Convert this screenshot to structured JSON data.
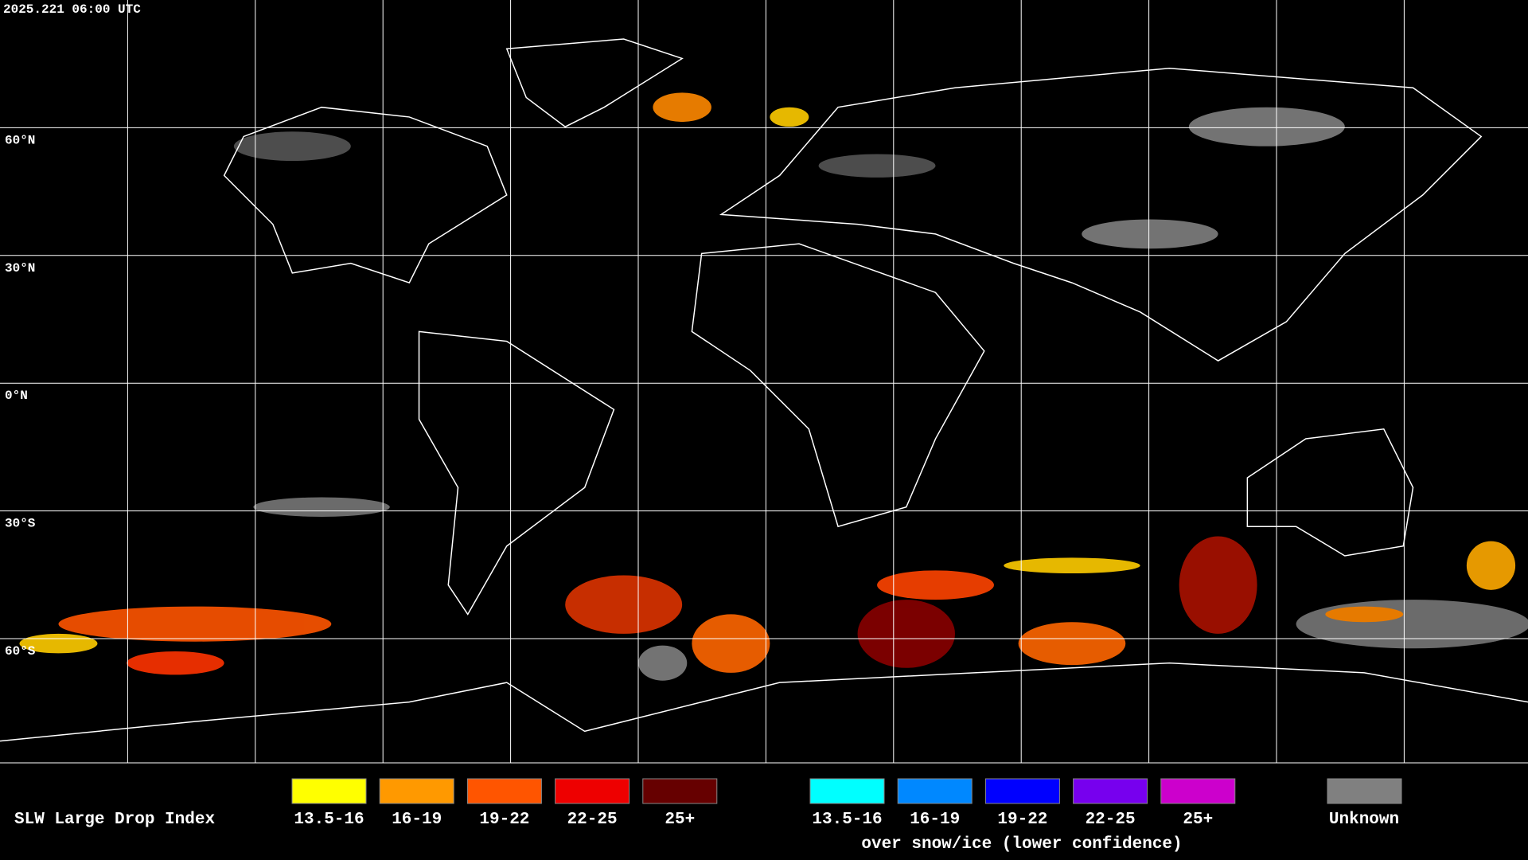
{
  "header": {
    "timestamp": "2025.221 06:00 UTC"
  },
  "map": {
    "latitude_labels": [
      "60°N",
      "30°N",
      "0°N",
      "30°S",
      "60°S"
    ]
  },
  "legend": {
    "title": "SLW Large Drop Index",
    "items": [
      {
        "label": "13.5-16",
        "color": "#ffff00"
      },
      {
        "label": "16-19",
        "color": "#ff9900"
      },
      {
        "label": "19-22",
        "color": "#ff5500"
      },
      {
        "label": "22-25",
        "color": "#ee0000"
      },
      {
        "label": "25+",
        "color": "#660000"
      }
    ],
    "snow_items": [
      {
        "label": "13.5-16",
        "color": "#00ffff"
      },
      {
        "label": "16-19",
        "color": "#0088ff"
      },
      {
        "label": "19-22",
        "color": "#0000ff"
      },
      {
        "label": "22-25",
        "color": "#7700ee"
      },
      {
        "label": "25+",
        "color": "#cc00cc"
      }
    ],
    "snow_caption": "over snow/ice (lower confidence)",
    "unknown": {
      "label": "Unknown",
      "color": "#808080"
    }
  }
}
